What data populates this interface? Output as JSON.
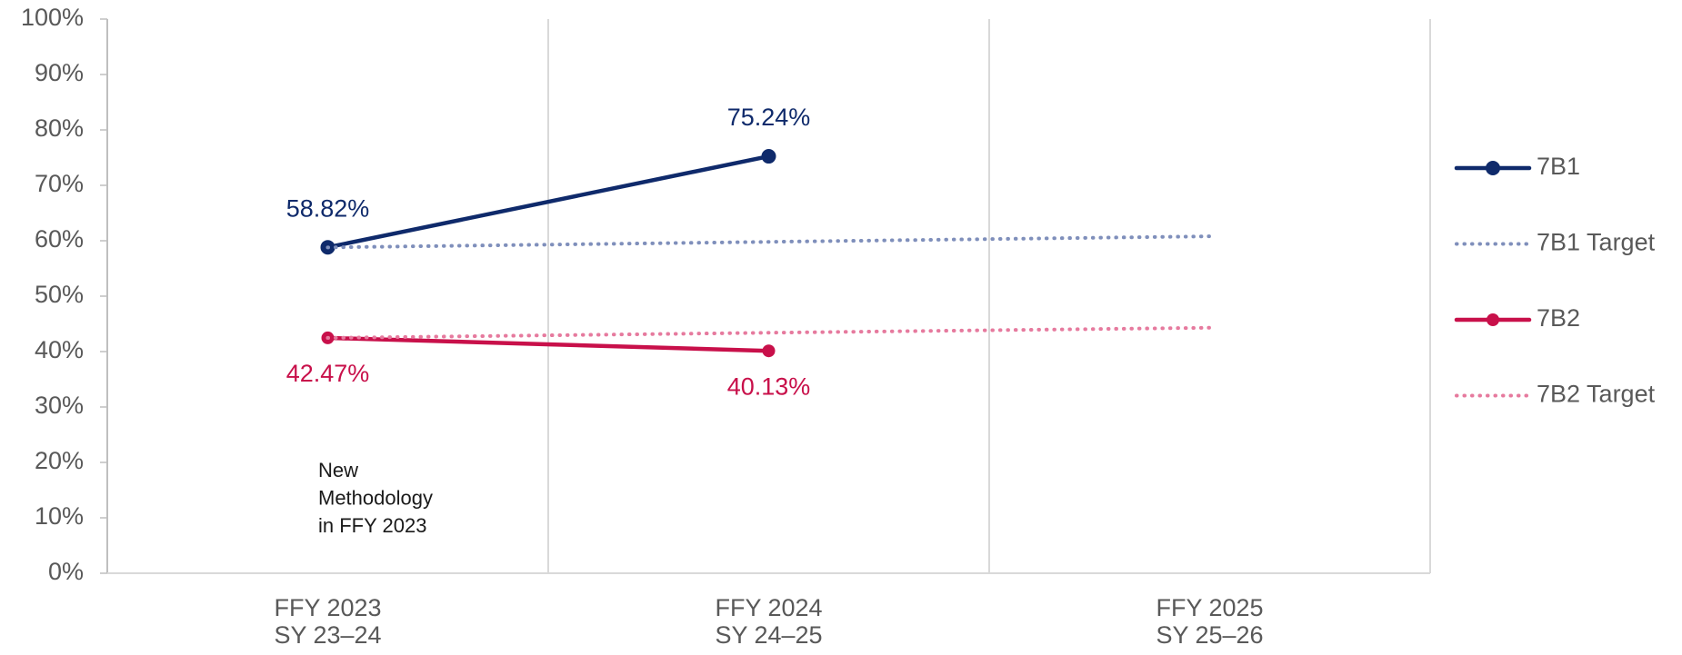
{
  "chart_data": {
    "type": "line",
    "categories": [
      [
        "FFY 2023",
        "SY 23–24"
      ],
      [
        "FFY 2024",
        "SY 24–25"
      ],
      [
        "FFY 2025",
        "SY 25–26"
      ]
    ],
    "ylim": [
      0,
      100
    ],
    "yticks": [
      {
        "value": 0,
        "label": "0%"
      },
      {
        "value": 10,
        "label": "10%"
      },
      {
        "value": 20,
        "label": "20%"
      },
      {
        "value": 30,
        "label": "30%"
      },
      {
        "value": 40,
        "label": "40%"
      },
      {
        "value": 50,
        "label": "50%"
      },
      {
        "value": 60,
        "label": "60%"
      },
      {
        "value": 70,
        "label": "70%"
      },
      {
        "value": 80,
        "label": "80%"
      },
      {
        "value": 90,
        "label": "90%"
      },
      {
        "value": 100,
        "label": "100%"
      }
    ],
    "grid": true,
    "legend": "right",
    "series": [
      {
        "name": "7B1",
        "color": "#0f2a6b",
        "style": "solid",
        "markers": true,
        "label_position": "above",
        "values": [
          58.82,
          75.24,
          null
        ],
        "value_labels": [
          "58.82%",
          "75.24%",
          null
        ]
      },
      {
        "name": "7B1 Target",
        "color": "#7f8fbb",
        "style": "dotted",
        "markers": false,
        "values": [
          58.8,
          59.8,
          60.8
        ]
      },
      {
        "name": "7B2",
        "color": "#c8104a",
        "style": "solid",
        "markers": true,
        "label_position": "below",
        "values": [
          42.47,
          40.13,
          null
        ],
        "value_labels": [
          "42.47%",
          "40.13%",
          null
        ]
      },
      {
        "name": "7B2 Target",
        "color": "#e67a9e",
        "style": "dotted",
        "markers": false,
        "values": [
          42.47,
          43.4,
          44.3
        ]
      }
    ],
    "annotation": [
      "New",
      "Methodology",
      "in FFY 2023"
    ]
  }
}
